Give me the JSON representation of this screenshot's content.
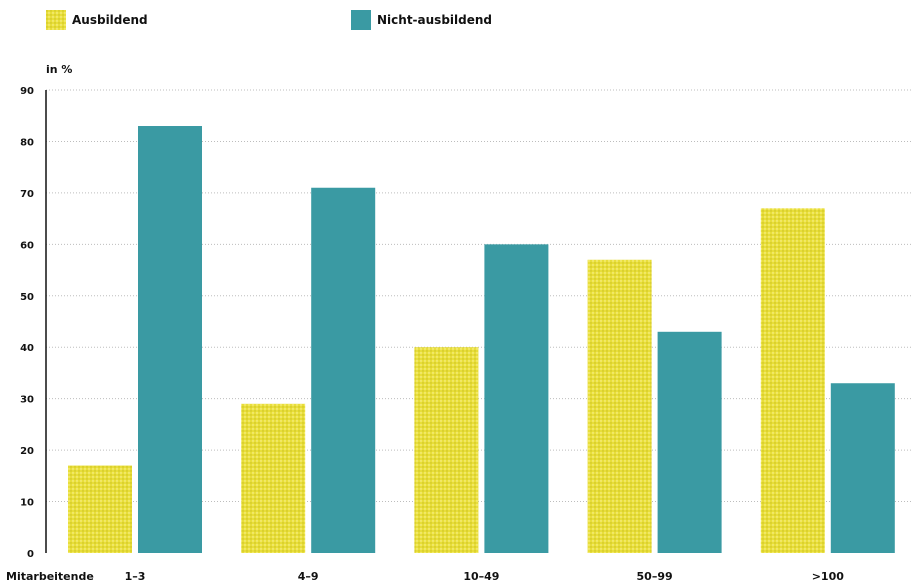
{
  "chart_data": {
    "type": "bar",
    "ylabel": "in %",
    "xlabel": "Mitarbeitende",
    "ylim": [
      0,
      90
    ],
    "yticks": [
      0,
      10,
      20,
      30,
      40,
      50,
      60,
      70,
      80,
      90
    ],
    "categories": [
      "1–3",
      "4–9",
      "10–49",
      "50–99",
      ">100"
    ],
    "series": [
      {
        "name": "Ausbildend",
        "values": [
          17,
          29,
          40,
          57,
          67
        ],
        "color": "#e8de3a",
        "pattern": "dotted"
      },
      {
        "name": "Nicht-ausbildend",
        "values": [
          83,
          71,
          60,
          43,
          33
        ],
        "color": "#3a9aa3"
      }
    ],
    "grid": true,
    "legend": "top-left"
  }
}
